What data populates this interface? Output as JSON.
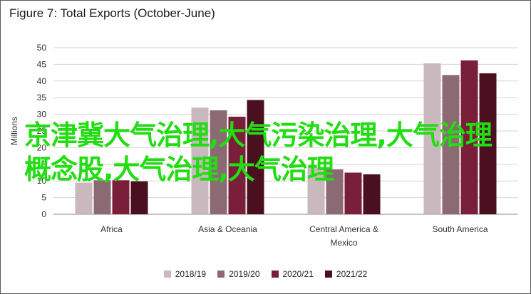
{
  "title": "Figure 7: Total Exports (October-June)",
  "overlay_text": "京津冀大气治理,大气污染治理,大气治理概念股,大气治理,大气治理",
  "chart_data": {
    "type": "bar",
    "title": "Figure 7: Total Exports (October-June)",
    "xlabel": "",
    "ylabel": "Millions",
    "ylim": [
      0,
      50
    ],
    "yticks": [
      0,
      5,
      10,
      15,
      20,
      25,
      30,
      35,
      40,
      45,
      50
    ],
    "grid": true,
    "legend_position": "bottom",
    "categories": [
      "Africa",
      "Asia & Oceania",
      "Central America & Mexico",
      "South America"
    ],
    "category_lines": [
      [
        "Africa"
      ],
      [
        "Asia & Oceania"
      ],
      [
        "Central America &",
        "Mexico"
      ],
      [
        "South America"
      ]
    ],
    "series": [
      {
        "name": "2018/19",
        "color": "#c9b8bd",
        "values": [
          9.5,
          32.0,
          14.0,
          45.3
        ]
      },
      {
        "name": "2019/20",
        "color": "#8c6a73",
        "values": [
          10.2,
          31.2,
          13.5,
          41.8
        ]
      },
      {
        "name": "2020/21",
        "color": "#7a1f3a",
        "values": [
          10.2,
          29.3,
          12.5,
          46.2
        ]
      },
      {
        "name": "2021/22",
        "color": "#4a1020",
        "values": [
          9.9,
          34.3,
          12.0,
          42.3
        ]
      }
    ]
  }
}
